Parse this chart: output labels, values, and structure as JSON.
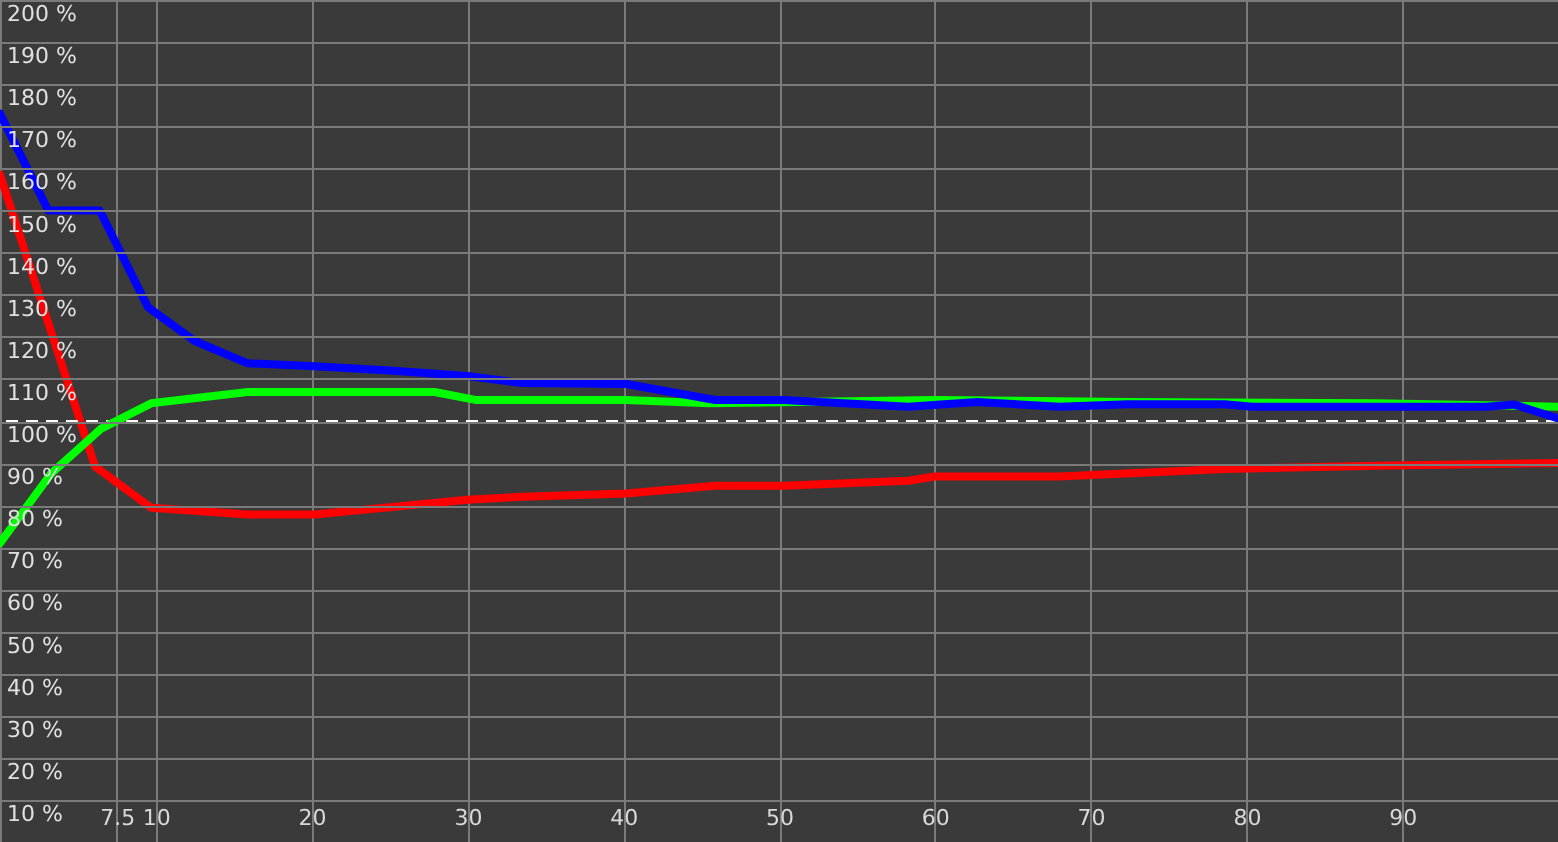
{
  "chart_data": {
    "type": "line",
    "x": [
      0,
      3.1,
      6.4,
      9.5,
      12.5,
      15.9,
      20.2,
      25,
      30,
      33.5,
      40.2,
      45.9,
      50.3,
      58.3,
      62.7,
      68,
      72.4,
      78.6,
      80.4,
      95.4,
      97.2,
      100
    ],
    "series": [
      {
        "color": "#ff0000",
        "x": [
          0,
          6.1,
          9.7,
          15.9,
          20.2,
          30,
          33.5,
          40.2,
          45.9,
          50.3,
          58.3,
          60,
          68,
          78.6,
          88.3,
          100
        ],
        "values": [
          158.5,
          89.2,
          79.4,
          77.8,
          77.8,
          81.3,
          82,
          82.8,
          84.6,
          84.6,
          85.8,
          86.8,
          86.8,
          88.6,
          89.4,
          90
        ]
      },
      {
        "color": "#00ff00",
        "x": [
          0,
          3.3,
          6.5,
          9.7,
          15.9,
          27.9,
          30.5,
          40.2,
          45.5,
          60,
          72.4,
          88.3,
          100
        ],
        "values": [
          71,
          87.6,
          98.2,
          104.2,
          106.9,
          106.9,
          105,
          105,
          104.2,
          105,
          104.5,
          104.2,
          103.4
        ]
      },
      {
        "color": "#0000ff",
        "values": [
          173,
          150,
          150,
          127,
          119,
          113.7,
          113,
          112,
          110.7,
          109,
          108.8,
          105,
          105,
          103.4,
          104.5,
          103.4,
          104,
          104,
          103.4,
          103.4,
          103.9,
          100.6
        ]
      }
    ],
    "xlim": [
      0,
      100
    ],
    "xticks": [
      7.5,
      10,
      20,
      30,
      40,
      50,
      60,
      70,
      80,
      90
    ],
    "ylim": [
      0,
      200
    ],
    "yticks": [
      {
        "value": 10,
        "label": "10 %"
      },
      {
        "value": 20,
        "label": "20 %"
      },
      {
        "value": 30,
        "label": "30 %"
      },
      {
        "value": 40,
        "label": "40 %"
      },
      {
        "value": 50,
        "label": "50 %"
      },
      {
        "value": 60,
        "label": "60 %"
      },
      {
        "value": 70,
        "label": "70 %"
      },
      {
        "value": 80,
        "label": "80 %"
      },
      {
        "value": 90,
        "label": "90 %"
      },
      {
        "value": 100,
        "label": "100 %"
      },
      {
        "value": 110,
        "label": "110 %"
      },
      {
        "value": 120,
        "label": "120 %"
      },
      {
        "value": 130,
        "label": "130 %"
      },
      {
        "value": 140,
        "label": "140 %"
      },
      {
        "value": 150,
        "label": "150 %"
      },
      {
        "value": 160,
        "label": "160 %"
      },
      {
        "value": 170,
        "label": "170 %"
      },
      {
        "value": 180,
        "label": "180 %"
      },
      {
        "value": 190,
        "label": "190 %"
      },
      {
        "value": 200,
        "label": "200 %"
      }
    ],
    "ref_lines": [
      {
        "axis": "y",
        "value": 100,
        "color": "#ffffff",
        "line_style": "dashed"
      }
    ],
    "grid": true,
    "marker": "none",
    "line_style": "solid"
  }
}
